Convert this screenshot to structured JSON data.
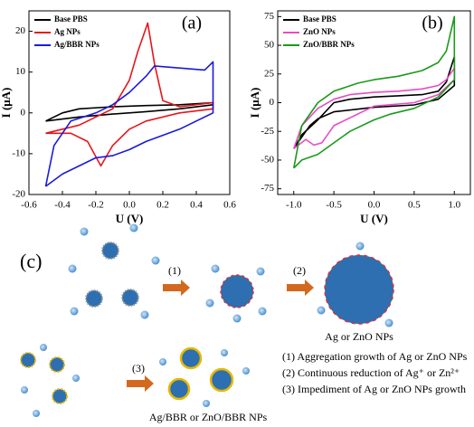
{
  "chart_data": [
    {
      "type": "line",
      "annotation": "(a)",
      "xlabel": "U (V)",
      "ylabel": "I (μA)",
      "xlim": [
        -0.6,
        0.6
      ],
      "xticks": [
        -0.6,
        -0.4,
        -0.2,
        {
          "value": 0,
          "label": "0.0"
        },
        0.2,
        0.4,
        0.6
      ],
      "ylim": [
        -20,
        25
      ],
      "yticks": [
        -20,
        -10,
        0,
        10,
        20
      ],
      "legend": "upper left",
      "series": [
        {
          "name": "Base PBS",
          "color": "#000000",
          "x": [
            -0.5,
            -0.4,
            -0.3,
            -0.1,
            0.1,
            0.3,
            0.5,
            0.5,
            0.3,
            0.1,
            -0.1,
            -0.3,
            -0.5
          ],
          "values": [
            -2,
            0,
            1,
            1.5,
            1.8,
            2,
            2.5,
            2,
            1,
            0.3,
            -0.3,
            -1,
            -2
          ]
        },
        {
          "name": "Ag NPs",
          "color": "#e8141b",
          "x": [
            -0.5,
            -0.3,
            -0.2,
            -0.1,
            0,
            0.05,
            0.11,
            0.15,
            0.2,
            0.3,
            0.5,
            0.5,
            0.3,
            0.1,
            0,
            -0.1,
            -0.17,
            -0.25,
            -0.35,
            -0.5
          ],
          "values": [
            -5,
            -3,
            -1,
            1,
            8,
            15,
            22,
            12,
            3,
            1.5,
            2.5,
            1,
            0,
            -2,
            -4,
            -8,
            -13,
            -7,
            -5,
            -5
          ]
        },
        {
          "name": "Ag/BBR NPs",
          "color": "#1a1adc",
          "x": [
            -0.5,
            -0.45,
            -0.35,
            -0.2,
            -0.1,
            0,
            0.1,
            0.15,
            0.3,
            0.45,
            0.5,
            0.5,
            0.3,
            0.1,
            0,
            -0.1,
            -0.2,
            -0.3,
            -0.4,
            -0.5
          ],
          "values": [
            -18,
            -8,
            -2,
            0,
            2,
            5,
            9,
            11.5,
            11,
            10.5,
            12.5,
            0,
            -4,
            -7,
            -9,
            -10.5,
            -11,
            -13,
            -15,
            -18
          ]
        }
      ]
    },
    {
      "type": "line",
      "annotation": "(b)",
      "xlabel": "U (V)",
      "ylabel": "I (μA)",
      "xlim": [
        -1.2,
        1.2
      ],
      "xticks": [
        {
          "value": -1,
          "label": "-1.0"
        },
        -0.5,
        {
          "value": 0,
          "label": "0.0"
        },
        0.5,
        {
          "value": 1,
          "label": "1.0"
        }
      ],
      "ylim": [
        -80,
        80
      ],
      "yticks": [
        -75,
        -50,
        -25,
        0,
        25,
        50,
        75
      ],
      "legend": "upper left",
      "series": [
        {
          "name": "Base PBS",
          "color": "#000000",
          "x": [
            -1,
            -0.9,
            -0.7,
            -0.5,
            -0.3,
            0,
            0.3,
            0.6,
            0.8,
            0.9,
            1,
            1,
            0.8,
            0.5,
            0,
            -0.5,
            -0.7,
            -0.8,
            -0.9,
            -1
          ],
          "values": [
            -40,
            -28,
            -15,
            0,
            3,
            5,
            6,
            7,
            10,
            18,
            40,
            15,
            3,
            -2,
            -4,
            -8,
            -14,
            -20,
            -30,
            -40
          ]
        },
        {
          "name": "ZnO NPs",
          "color": "#e84cc4",
          "x": [
            -1,
            -0.9,
            -0.7,
            -0.5,
            -0.3,
            0,
            0.3,
            0.6,
            0.8,
            0.9,
            1,
            1,
            0.8,
            0.5,
            0,
            -0.5,
            -0.65,
            -0.75,
            -0.85,
            -1
          ],
          "values": [
            -40,
            -20,
            -5,
            3,
            7,
            9,
            10,
            12,
            15,
            20,
            30,
            20,
            7,
            0,
            -3,
            -20,
            -35,
            -37,
            -32,
            -40
          ]
        },
        {
          "name": "ZnO/BBR NPs",
          "color": "#1a9a1a",
          "x": [
            -1,
            -0.9,
            -0.7,
            -0.5,
            -0.2,
            0,
            0.3,
            0.6,
            0.8,
            0.9,
            1,
            1,
            0.8,
            0.5,
            0.2,
            0,
            -0.3,
            -0.5,
            -0.7,
            -0.9,
            -1
          ],
          "values": [
            -57,
            -20,
            0,
            10,
            17,
            20,
            23,
            28,
            35,
            45,
            75,
            20,
            5,
            -5,
            -10,
            -15,
            -25,
            -35,
            -45,
            -50,
            -57
          ]
        }
      ]
    }
  ],
  "diagram": {
    "label": "(c)",
    "steps": [
      "(1)",
      "(2)",
      "(3)"
    ],
    "products": [
      "Ag or ZnO NPs",
      "Ag/BBR or ZnO/BBR NPs"
    ],
    "notes": [
      "(1) Aggregation growth of Ag or ZnO NPs",
      "(2) Continuous reduction of Ag⁺ or Zn²⁺",
      "(3) Impediment of Ag or ZnO NPs growth"
    ]
  }
}
